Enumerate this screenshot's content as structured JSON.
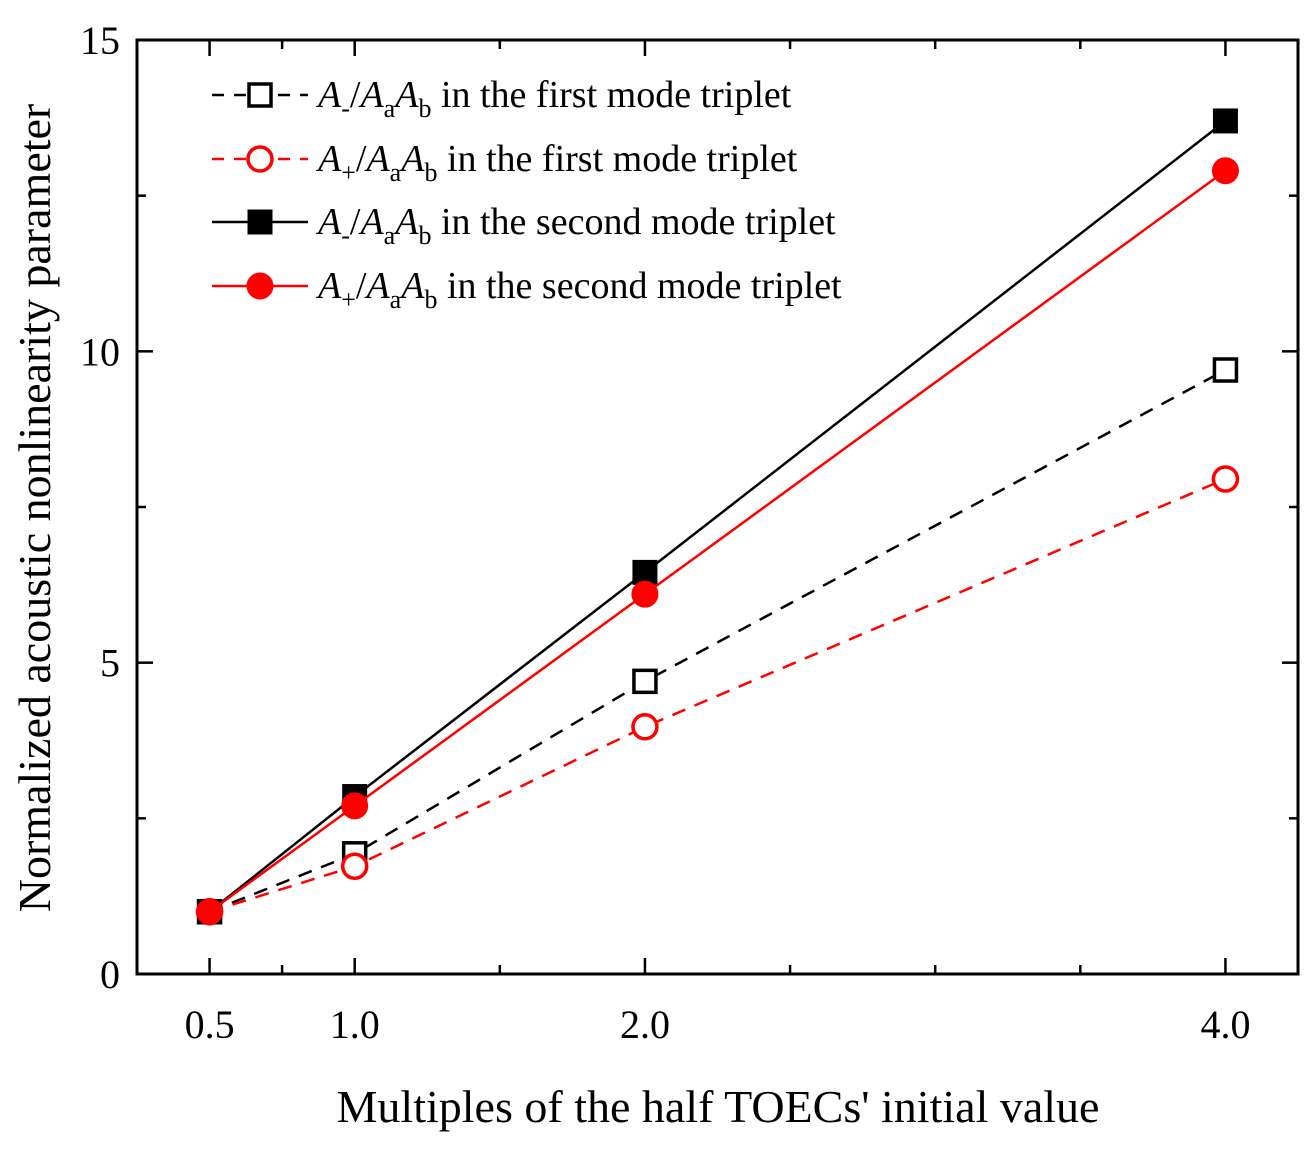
{
  "chart_data": {
    "type": "line",
    "title": "",
    "xlabel": "Multiples of the half TOECs' initial value",
    "ylabel": "Normalized acoustic nonlinearity parameter",
    "x": [
      0.5,
      1.0,
      2.0,
      4.0
    ],
    "x_tick_labels": [
      "0.5",
      "1.0",
      "2.0",
      "4.0"
    ],
    "xlim": [
      0.25,
      4.25
    ],
    "ylim": [
      0,
      15
    ],
    "y_tick_labels": [
      "0",
      "5",
      "10",
      "15"
    ],
    "legend_position": "top-left",
    "series": [
      {
        "name": "A-/AaAb in the first mode triplet",
        "legend": {
          "a": "A",
          "a_sub": "-",
          "slash": "/",
          "b": "A",
          "b_sub": "a",
          "c": "A",
          "c_sub": "b",
          "tail": " in the first mode triplet"
        },
        "values": [
          1.0,
          1.93,
          4.7,
          9.7
        ],
        "color": "#000000",
        "marker": "square-open",
        "dashed": true
      },
      {
        "name": "A+/AaAb in the first mode triplet",
        "legend": {
          "a": "A",
          "a_sub": "+",
          "slash": "/",
          "b": "A",
          "b_sub": "a",
          "c": "A",
          "c_sub": "b",
          "tail": " in the first mode triplet"
        },
        "values": [
          1.0,
          1.73,
          3.97,
          7.95
        ],
        "color": "#ff0000",
        "marker": "circle-open",
        "dashed": true
      },
      {
        "name": "A-/AaAb in the second mode triplet",
        "legend": {
          "a": "A",
          "a_sub": "-",
          "slash": "/",
          "b": "A",
          "b_sub": "a",
          "c": "A",
          "c_sub": "b",
          "tail": " in the second mode triplet"
        },
        "values": [
          1.0,
          2.85,
          6.45,
          13.7
        ],
        "color": "#000000",
        "marker": "square-filled",
        "dashed": false
      },
      {
        "name": "A+/AaAb in the second mode triplet",
        "legend": {
          "a": "A",
          "a_sub": "+",
          "slash": "/",
          "b": "A",
          "b_sub": "a",
          "c": "A",
          "c_sub": "b",
          "tail": " in the second mode triplet"
        },
        "values": [
          1.0,
          2.7,
          6.1,
          12.9
        ],
        "color": "#ff0000",
        "marker": "circle-filled",
        "dashed": false
      }
    ]
  }
}
